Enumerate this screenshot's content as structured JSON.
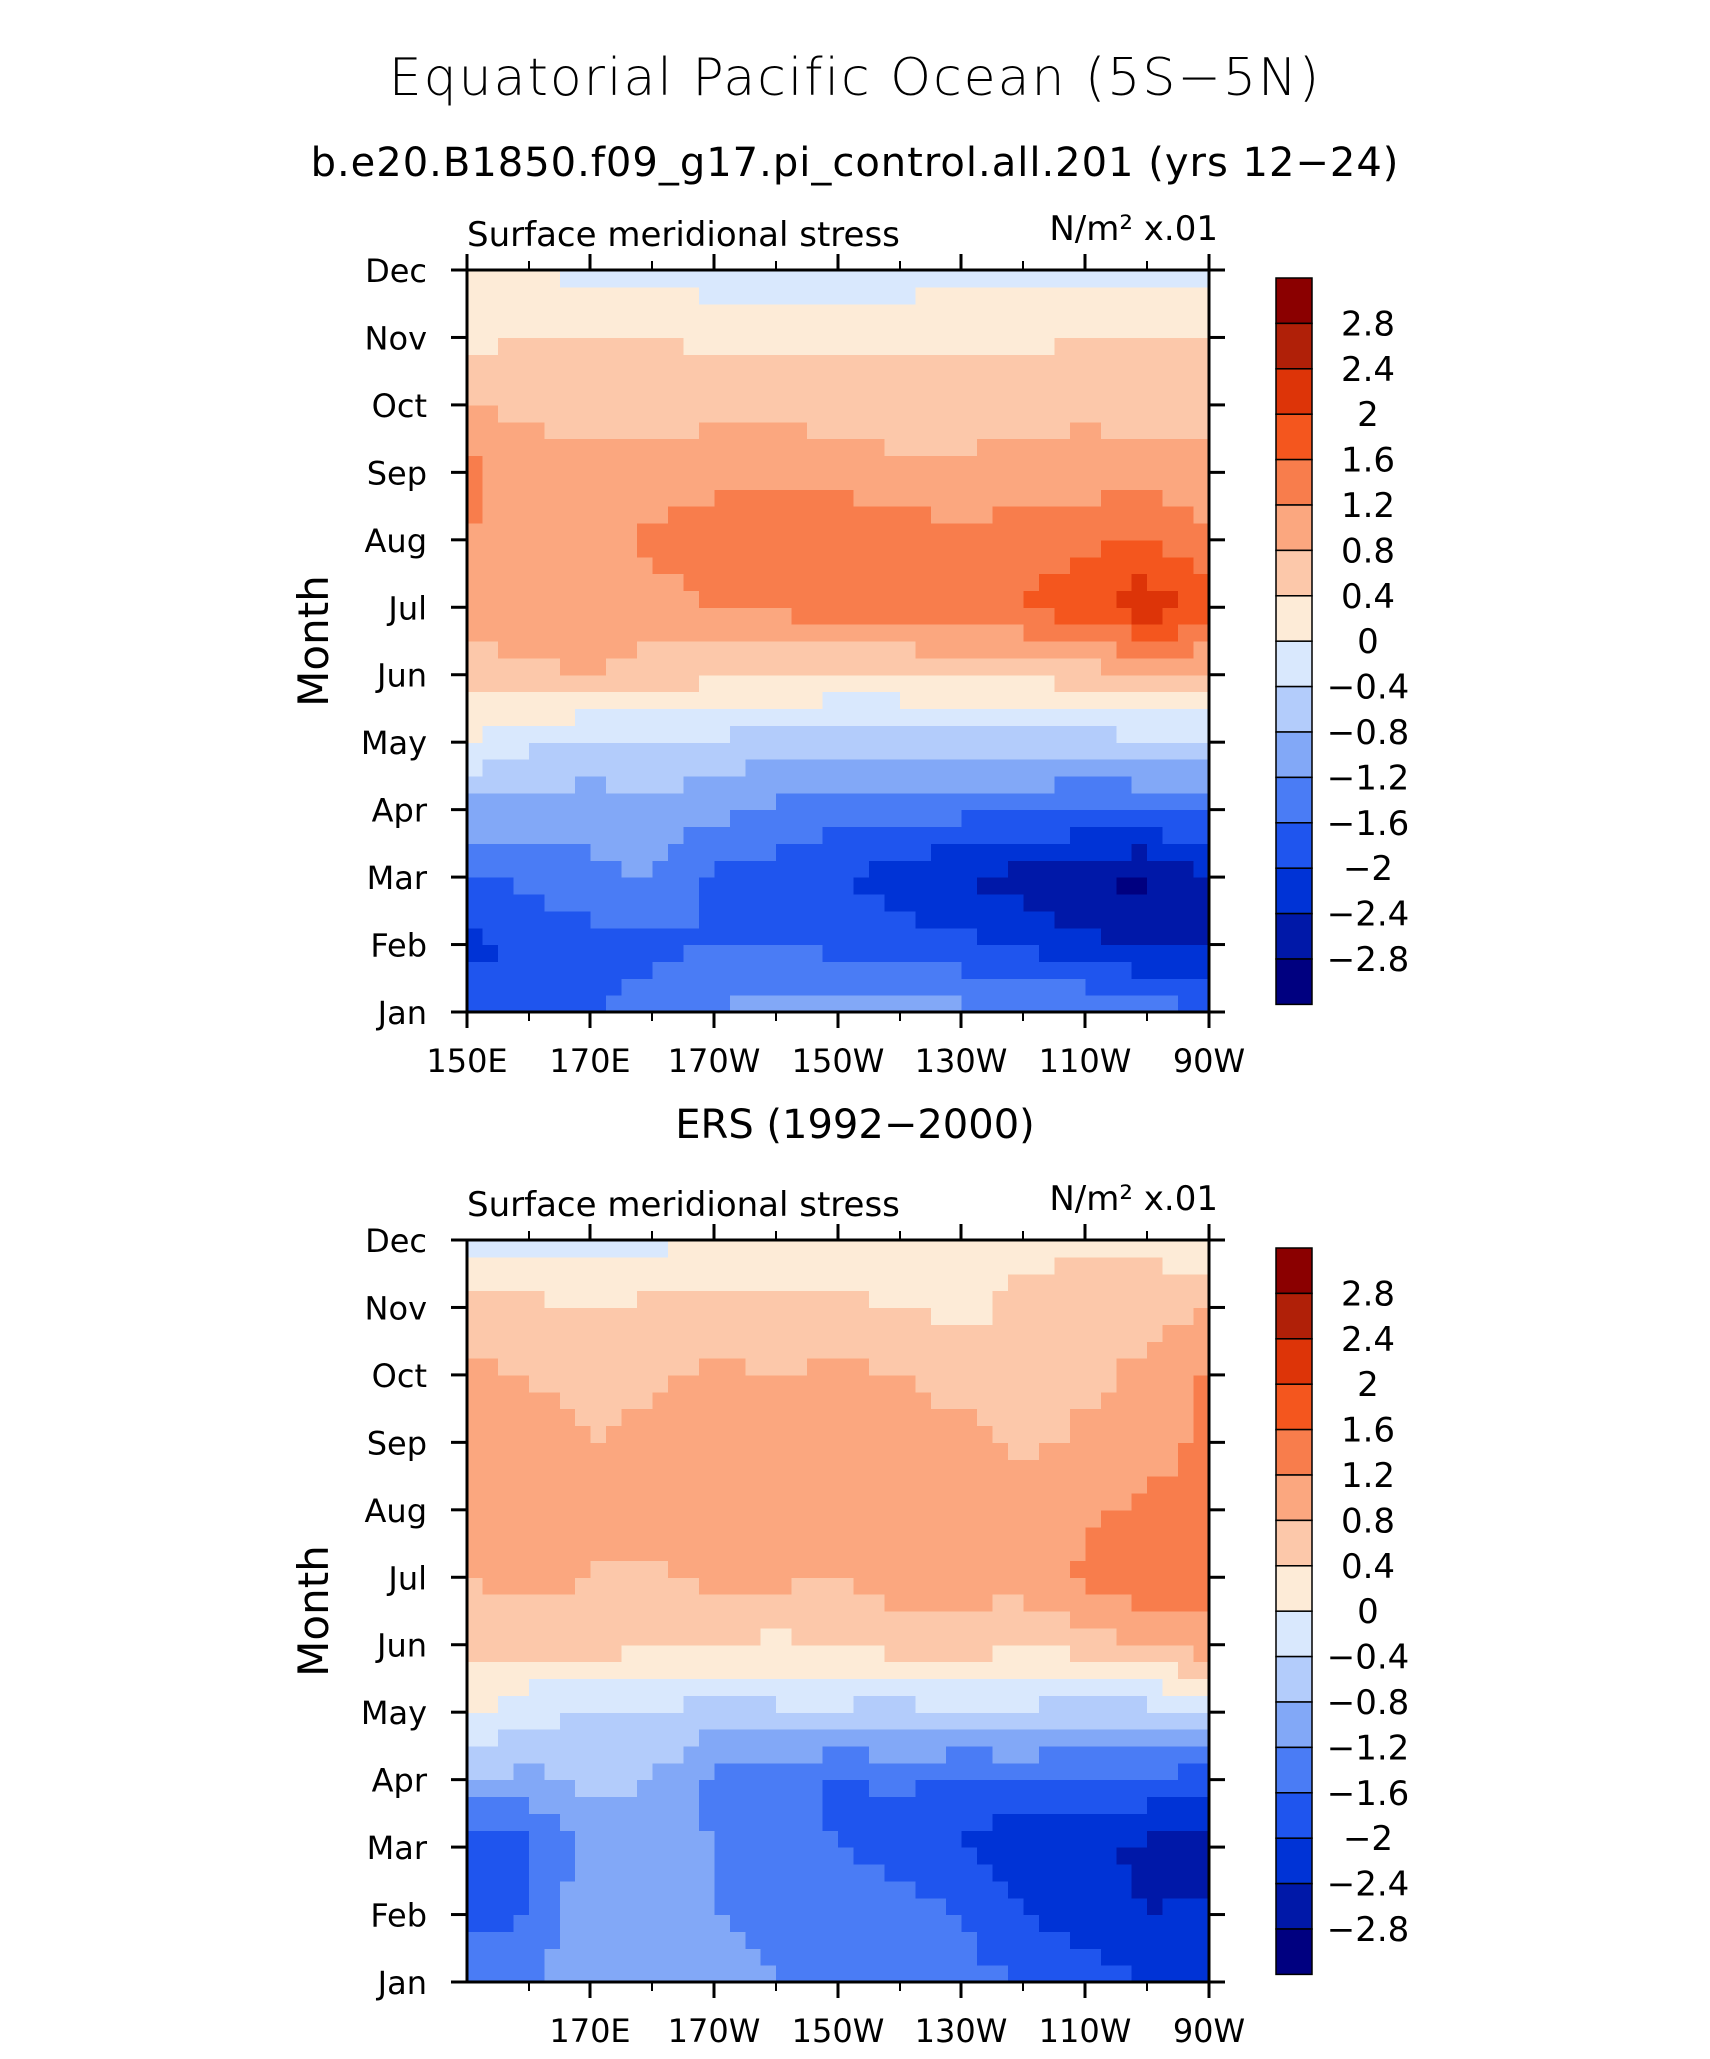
{
  "figure": {
    "title": "Equatorial Pacific Ocean (5S−5N)",
    "subtitle": "b.e20.B1850.f09_g17.pi_control.all.201 (yrs 12−24)"
  },
  "colors": {
    "levels": [
      -2.8,
      -2.4,
      -2.0,
      -1.6,
      -1.2,
      -0.8,
      -0.4,
      0.0,
      0.4,
      0.8,
      1.2,
      1.6,
      2.0,
      2.4,
      2.8
    ],
    "fills": [
      "#000080",
      "#0018a8",
      "#0033d6",
      "#1f55ee",
      "#4a7cf5",
      "#82a8f7",
      "#b3ccfb",
      "#d9e8fd",
      "#fdebd7",
      "#fcc8aa",
      "#fba77f",
      "#f87d4c",
      "#f4561e",
      "#dd3408",
      "#b02008",
      "#8b0000"
    ]
  },
  "chart_data": [
    {
      "type": "heatmap",
      "panel_title": "",
      "left_label": "Surface meridional stress",
      "units_label": "N/m² x.01",
      "ylabel": "Month",
      "x_ticks": [
        "150E",
        "170E",
        "170W",
        "150W",
        "130W",
        "110W",
        "90W"
      ],
      "y_ticks": [
        "Jan",
        "Feb",
        "Mar",
        "Apr",
        "May",
        "Jun",
        "Jul",
        "Aug",
        "Sep",
        "Oct",
        "Nov",
        "Dec"
      ],
      "colorbar_labels": [
        "2.8",
        "2.4",
        "2",
        "1.6",
        "1.2",
        "0.8",
        "0.4",
        "0",
        "−0.4",
        "−0.8",
        "−1.2",
        "−1.6",
        "−2",
        "−2.4",
        "−2.8"
      ],
      "x": [
        150,
        160,
        170,
        180,
        190,
        200,
        210,
        220,
        230,
        240,
        250,
        260,
        270
      ],
      "months": [
        "Jan",
        "Feb",
        "Mar",
        "Apr",
        "May",
        "Jun",
        "Jul",
        "Aug",
        "Sep",
        "Oct",
        "Nov",
        "Dec"
      ],
      "values": [
        [
          -1.8,
          -1.9,
          -1.6,
          -1.4,
          -1.2,
          -1.0,
          -1.0,
          -1.0,
          -1.1,
          -1.1,
          -1.2,
          -1.3,
          -1.6
        ],
        [
          -2.1,
          -1.9,
          -1.8,
          -1.7,
          -1.6,
          -1.6,
          -1.7,
          -1.8,
          -1.9,
          -2.1,
          -2.3,
          -2.5,
          -2.4
        ],
        [
          -1.7,
          -1.5,
          -1.3,
          -1.2,
          -1.7,
          -1.8,
          -2.0,
          -2.2,
          -2.4,
          -2.6,
          -2.8,
          -2.9,
          -2.4
        ],
        [
          -0.9,
          -1.0,
          -1.0,
          -0.9,
          -1.1,
          -1.3,
          -1.4,
          -1.4,
          -1.5,
          -1.5,
          -1.6,
          -1.6,
          -1.5
        ],
        [
          0.0,
          -0.3,
          -0.5,
          -0.5,
          -0.5,
          -0.6,
          -0.7,
          -0.7,
          -0.6,
          -0.6,
          -0.6,
          -0.5,
          -0.5
        ],
        [
          0.6,
          0.7,
          0.8,
          0.6,
          0.5,
          0.4,
          0.4,
          0.4,
          0.5,
          0.5,
          0.6,
          0.7,
          0.7
        ],
        [
          1.0,
          1.1,
          1.1,
          1.0,
          1.2,
          1.3,
          1.4,
          1.4,
          1.5,
          1.6,
          1.9,
          2.3,
          1.9
        ],
        [
          1.2,
          1.1,
          1.0,
          1.3,
          1.5,
          1.6,
          1.6,
          1.5,
          1.3,
          1.4,
          1.5,
          1.6,
          1.2
        ],
        [
          1.3,
          1.0,
          0.9,
          0.9,
          1.0,
          1.1,
          1.0,
          0.9,
          0.9,
          1.0,
          1.0,
          1.0,
          1.0
        ],
        [
          0.8,
          0.7,
          0.7,
          0.7,
          0.7,
          0.7,
          0.6,
          0.6,
          0.6,
          0.6,
          0.7,
          0.6,
          0.6
        ],
        [
          0.3,
          0.4,
          0.4,
          0.4,
          0.3,
          0.3,
          0.3,
          0.3,
          0.3,
          0.3,
          0.4,
          0.4,
          0.4
        ],
        [
          0.1,
          0.0,
          -0.1,
          -0.1,
          -0.2,
          -0.3,
          -0.3,
          -0.2,
          -0.1,
          -0.1,
          -0.2,
          -0.2,
          -0.1
        ]
      ]
    },
    {
      "type": "heatmap",
      "panel_title": "ERS (1992−2000)",
      "left_label": "Surface meridional stress",
      "units_label": "N/m² x.01",
      "ylabel": "Month",
      "x_ticks": [
        "170E",
        "170W",
        "150W",
        "130W",
        "110W",
        "90W"
      ],
      "y_ticks": [
        "Jan",
        "Feb",
        "Mar",
        "Apr",
        "May",
        "Jun",
        "Jul",
        "Aug",
        "Sep",
        "Oct",
        "Nov",
        "Dec"
      ],
      "colorbar_labels": [
        "2.8",
        "2.4",
        "2",
        "1.6",
        "1.2",
        "0.8",
        "0.4",
        "0",
        "−0.4",
        "−0.8",
        "−1.2",
        "−1.6",
        "−2",
        "−2.4",
        "−2.8"
      ],
      "x": [
        150,
        160,
        170,
        180,
        190,
        200,
        210,
        220,
        230,
        240,
        250,
        260,
        270
      ],
      "months": [
        "Jan",
        "Feb",
        "Mar",
        "Apr",
        "May",
        "Jun",
        "Jul",
        "Aug",
        "Sep",
        "Oct",
        "Nov",
        "Dec"
      ],
      "values": [
        [
          -1.3,
          -1.2,
          -0.9,
          -0.8,
          -1.0,
          -1.2,
          -1.3,
          -1.4,
          -1.5,
          -1.6,
          -1.8,
          -2.0,
          -2.1
        ],
        [
          -1.8,
          -1.6,
          -0.9,
          -1.0,
          -1.2,
          -1.3,
          -1.3,
          -1.4,
          -1.6,
          -2.0,
          -2.2,
          -2.4,
          -2.3
        ],
        [
          -2.0,
          -1.7,
          -1.0,
          -1.1,
          -1.2,
          -1.4,
          -1.6,
          -1.8,
          -2.0,
          -2.4,
          -2.3,
          -2.5,
          -2.6
        ],
        [
          -0.8,
          -0.9,
          -0.7,
          -0.8,
          -1.3,
          -1.4,
          -1.7,
          -1.5,
          -1.7,
          -1.6,
          -1.6,
          -1.7,
          -1.8
        ],
        [
          0.1,
          -0.3,
          -0.4,
          -0.4,
          -0.6,
          -0.5,
          -0.5,
          -0.6,
          -0.4,
          -0.5,
          -0.6,
          -0.6,
          -0.4
        ],
        [
          0.6,
          0.5,
          0.6,
          0.4,
          0.5,
          0.3,
          0.4,
          0.6,
          0.7,
          0.4,
          0.6,
          0.9,
          1.0
        ],
        [
          0.8,
          0.9,
          0.8,
          0.7,
          0.9,
          0.9,
          0.8,
          1.0,
          0.9,
          1.0,
          1.3,
          1.5,
          1.4
        ],
        [
          0.9,
          0.9,
          0.8,
          1.0,
          1.1,
          0.9,
          1.0,
          1.1,
          1.0,
          0.9,
          1.1,
          1.3,
          1.4
        ],
        [
          1.2,
          1.0,
          0.8,
          1.0,
          1.0,
          1.1,
          1.0,
          1.0,
          1.0,
          0.7,
          0.9,
          1.0,
          1.3
        ],
        [
          0.9,
          0.8,
          0.6,
          0.7,
          0.9,
          0.8,
          0.9,
          0.8,
          0.6,
          0.5,
          0.7,
          0.9,
          1.3
        ],
        [
          0.5,
          0.5,
          0.4,
          0.5,
          0.5,
          0.5,
          0.5,
          0.4,
          0.3,
          0.5,
          0.8,
          0.6,
          0.8
        ],
        [
          -0.1,
          -0.1,
          -0.2,
          -0.1,
          0.1,
          0.1,
          0.0,
          0.1,
          0.2,
          0.3,
          0.2,
          0.3,
          0.1
        ]
      ]
    }
  ]
}
